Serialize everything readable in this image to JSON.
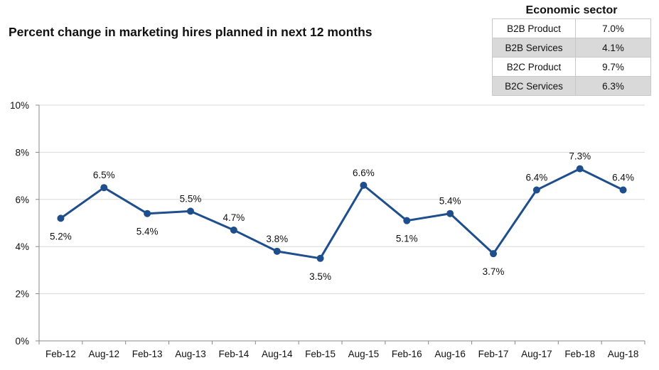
{
  "chart_data": {
    "type": "line",
    "title": "Percent change in marketing hires planned in next 12 months",
    "xlabel": "",
    "ylabel": "",
    "categories": [
      "Feb-12",
      "Aug-12",
      "Feb-13",
      "Aug-13",
      "Feb-14",
      "Aug-14",
      "Feb-15",
      "Aug-15",
      "Feb-16",
      "Aug-16",
      "Feb-17",
      "Aug-17",
      "Feb-18",
      "Aug-18"
    ],
    "series": [
      {
        "values": [
          5.2,
          6.5,
          5.4,
          5.5,
          4.7,
          3.8,
          3.5,
          6.6,
          5.1,
          5.4,
          3.7,
          6.4,
          7.3,
          6.4
        ],
        "data_labels": [
          "5.2%",
          "6.5%",
          "5.4%",
          "5.5%",
          "4.7%",
          "3.8%",
          "3.5%",
          "6.6%",
          "5.1%",
          "5.4%",
          "3.7%",
          "6.4%",
          "7.3%",
          "6.4%"
        ],
        "color": "#1f4e8c"
      }
    ],
    "ylim": [
      0,
      10
    ],
    "yticks": [
      "0%",
      "2%",
      "4%",
      "6%",
      "8%",
      "10%"
    ],
    "grid": true,
    "legend": "none",
    "label_placement": [
      "below",
      "above",
      "below",
      "above",
      "above",
      "above",
      "below",
      "above",
      "below",
      "above",
      "below",
      "above",
      "above",
      "above"
    ]
  },
  "sector_table": {
    "title": "Economic sector",
    "rows": [
      {
        "sector": "B2B Product",
        "value": "7.0%"
      },
      {
        "sector": "B2B Services",
        "value": "4.1%"
      },
      {
        "sector": "B2C Product",
        "value": "9.7%"
      },
      {
        "sector": "B2C Services",
        "value": "6.3%"
      }
    ]
  },
  "colors": {
    "line": "#1f4e8c",
    "grid": "#d9d9d9",
    "axis": "#888888",
    "table_shade": "#d9d9d9"
  }
}
